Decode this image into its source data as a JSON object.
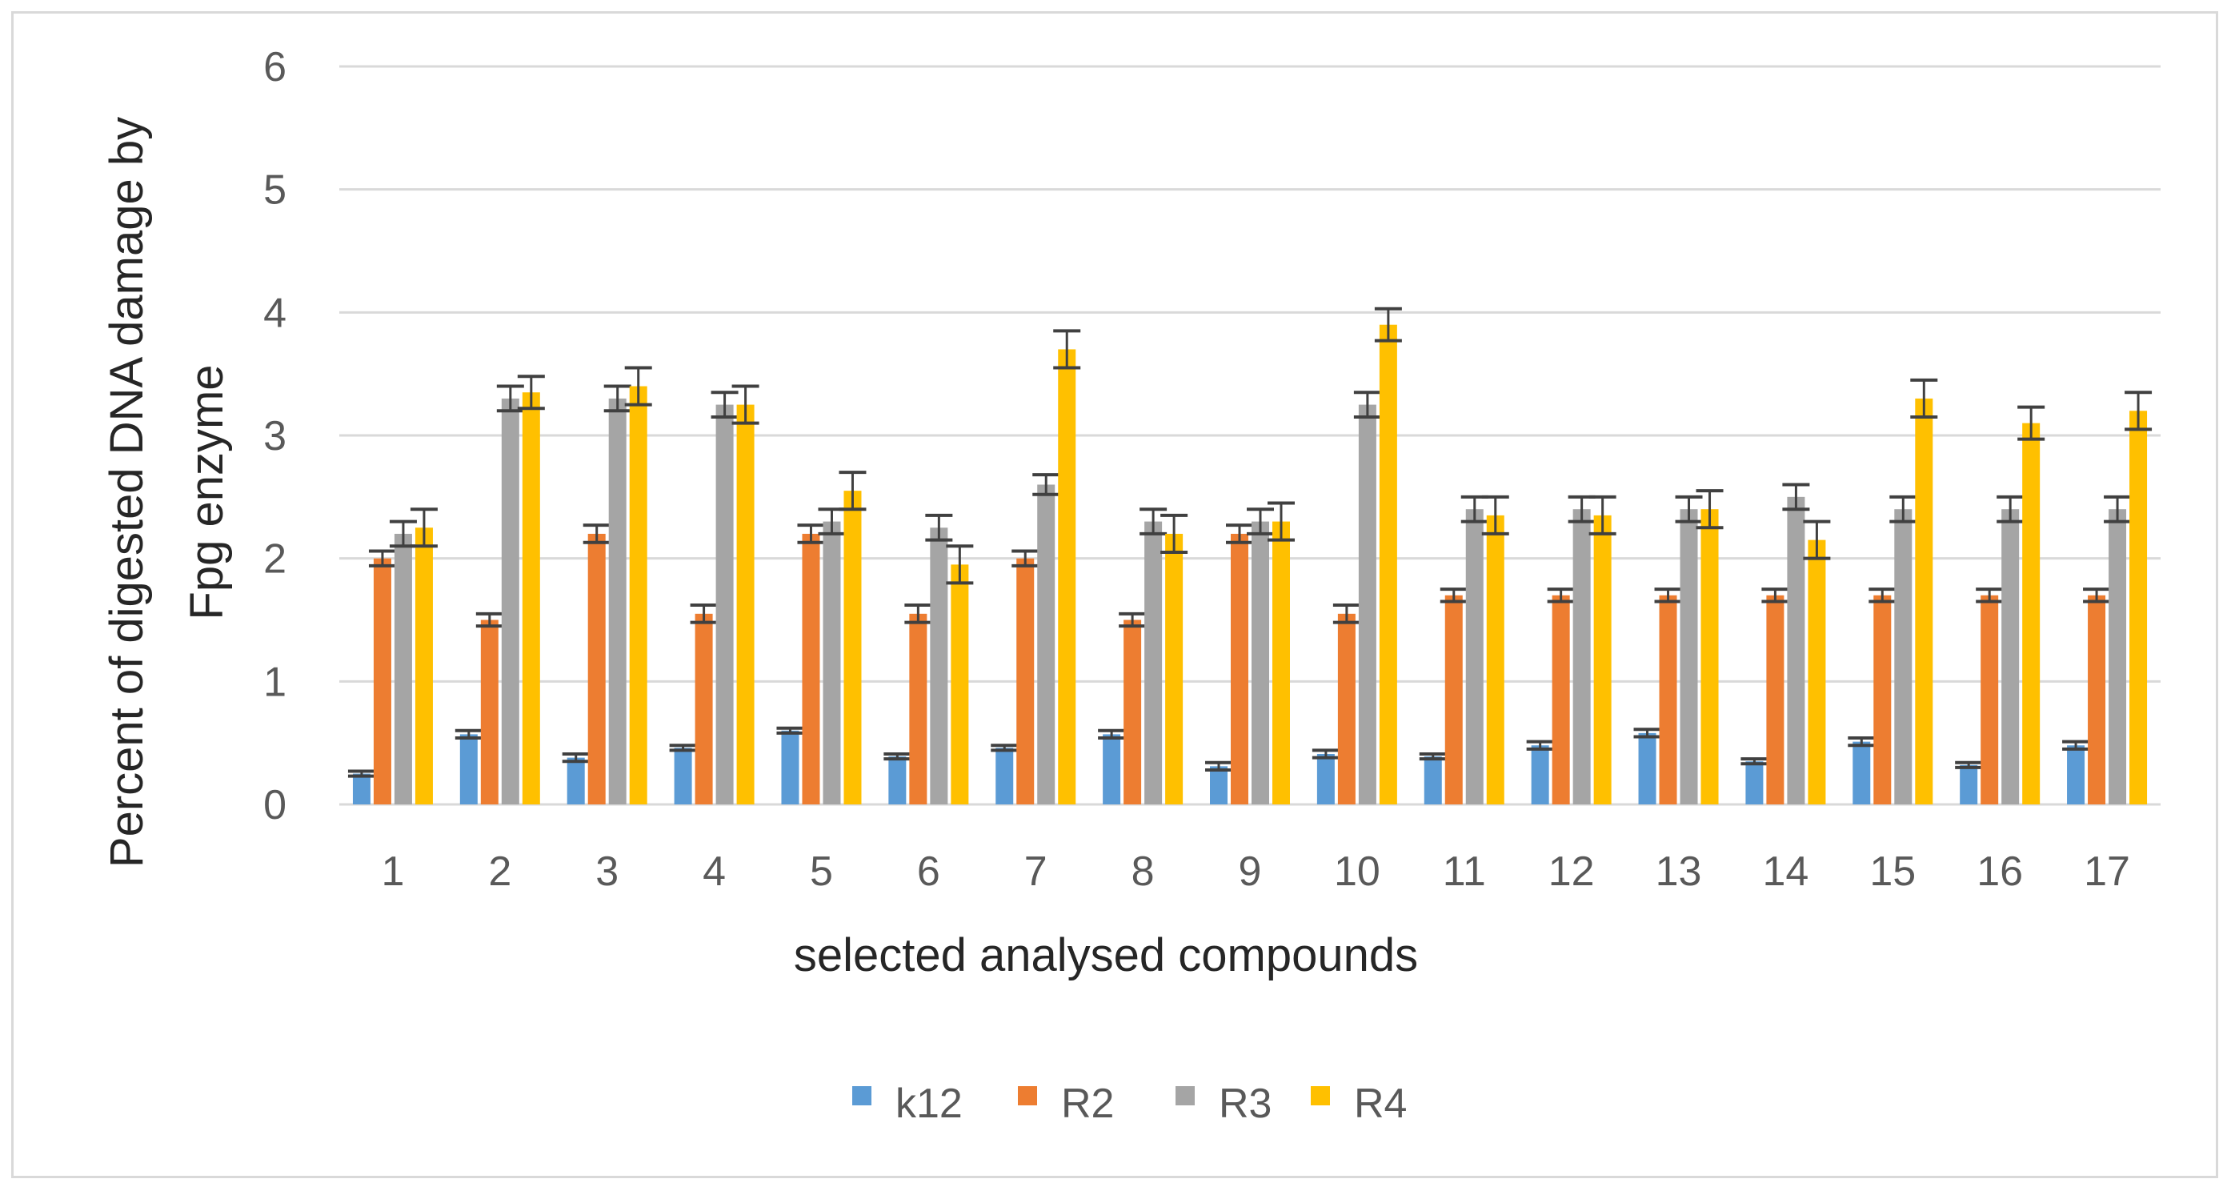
{
  "chart_data": {
    "type": "bar",
    "title": "",
    "xlabel": "selected analysed compounds",
    "ylabel_line1": "Percent of digested DNA damage by",
    "ylabel_line2": "Fpg enzyme",
    "ylim": [
      0,
      6
    ],
    "yticks": [
      "0",
      "1",
      "2",
      "3",
      "4",
      "5",
      "6"
    ],
    "grid": true,
    "legend_position": "bottom",
    "categories": [
      "1",
      "2",
      "3",
      "4",
      "5",
      "6",
      "7",
      "8",
      "9",
      "10",
      "11",
      "12",
      "13",
      "14",
      "15",
      "16",
      "17"
    ],
    "series": [
      {
        "name": "k12",
        "color": "#5b9bd5",
        "values": [
          0.25,
          0.57,
          0.38,
          0.46,
          0.6,
          0.39,
          0.46,
          0.57,
          0.31,
          0.41,
          0.39,
          0.48,
          0.58,
          0.35,
          0.51,
          0.32,
          0.48
        ],
        "errors": [
          0.02,
          0.03,
          0.03,
          0.02,
          0.02,
          0.02,
          0.02,
          0.03,
          0.03,
          0.03,
          0.02,
          0.03,
          0.03,
          0.02,
          0.03,
          0.02,
          0.03
        ]
      },
      {
        "name": "R2",
        "color": "#ed7d31",
        "values": [
          2.0,
          1.5,
          2.2,
          1.55,
          2.2,
          1.55,
          2.0,
          1.5,
          2.2,
          1.55,
          1.7,
          1.7,
          1.7,
          1.7,
          1.7,
          1.7,
          1.7
        ],
        "errors": [
          0.06,
          0.05,
          0.07,
          0.07,
          0.07,
          0.07,
          0.06,
          0.05,
          0.07,
          0.07,
          0.05,
          0.05,
          0.05,
          0.05,
          0.05,
          0.05,
          0.05
        ]
      },
      {
        "name": "R3",
        "color": "#a5a5a5",
        "values": [
          2.2,
          3.3,
          3.3,
          3.25,
          2.3,
          2.25,
          2.6,
          2.3,
          2.3,
          3.25,
          2.4,
          2.4,
          2.4,
          2.5,
          2.4,
          2.4,
          2.4
        ],
        "errors": [
          0.1,
          0.1,
          0.1,
          0.1,
          0.1,
          0.1,
          0.08,
          0.1,
          0.1,
          0.1,
          0.1,
          0.1,
          0.1,
          0.1,
          0.1,
          0.1,
          0.1
        ]
      },
      {
        "name": "R4",
        "color": "#ffc000",
        "values": [
          2.25,
          3.35,
          3.4,
          3.25,
          2.55,
          1.95,
          3.7,
          2.2,
          2.3,
          3.9,
          2.35,
          2.35,
          2.4,
          2.15,
          3.3,
          3.1,
          3.2
        ],
        "errors": [
          0.15,
          0.13,
          0.15,
          0.15,
          0.15,
          0.15,
          0.15,
          0.15,
          0.15,
          0.13,
          0.15,
          0.15,
          0.15,
          0.15,
          0.15,
          0.13,
          0.15
        ]
      }
    ]
  }
}
